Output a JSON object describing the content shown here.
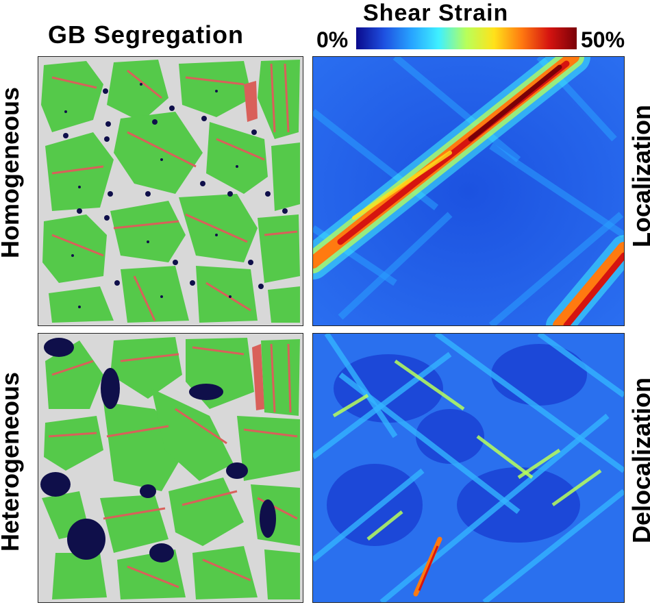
{
  "titles": {
    "left_column": "GB Segregation",
    "right_column": "Shear Strain"
  },
  "colorbar": {
    "min_label": "0%",
    "max_label": "50%",
    "stops": [
      "#0a0a8c",
      "#1e4fe0",
      "#27a3ff",
      "#3ff0ff",
      "#b8ff5a",
      "#ffe21a",
      "#ff7a10",
      "#d51410",
      "#7a0008"
    ]
  },
  "rows": {
    "top": "Homogeneous",
    "bottom": "Heterogeneous"
  },
  "side_labels": {
    "top": "Localization",
    "bottom": "Delocalization"
  },
  "colors": {
    "grain": "#55c94a",
    "twin": "#d9605a",
    "grain_boundary": "#d8d8d8",
    "solute": "#0f0f4a",
    "strain_low": "#1e4fe0",
    "strain_mid": "#2aa0ff"
  }
}
